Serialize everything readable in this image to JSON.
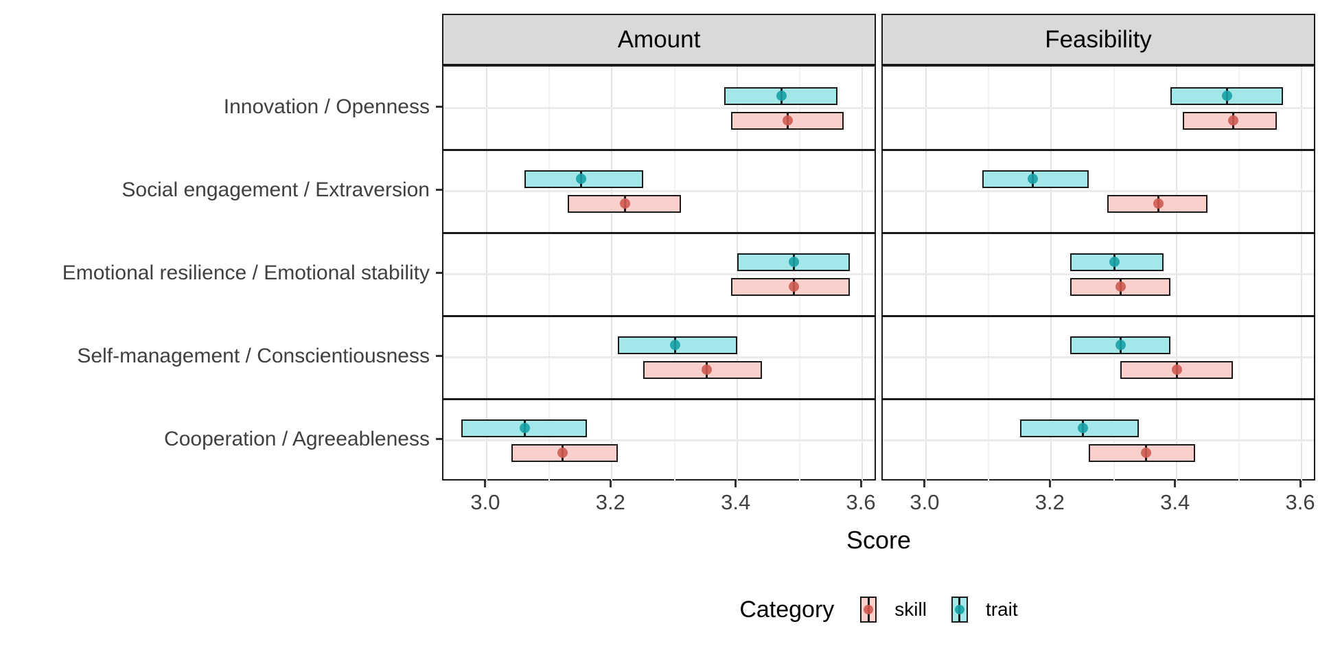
{
  "colors": {
    "skill_fill": "#FBCFCB",
    "skill_point": "#CE5B51",
    "trait_fill": "#A3E7E9",
    "trait_point": "#18A2A7",
    "strip_bg": "#D9D9D9",
    "grid_major": "#E3E3E3",
    "grid_minor": "#F1F1F1",
    "category_grid": "#EBEBEB",
    "panel_border": "#1A1A1A",
    "axis_text": "#404040"
  },
  "chart_data": {
    "type": "bar",
    "subtype": "crossbar_range_with_midpoint",
    "title": "",
    "xlabel": "Score",
    "grid": "on",
    "legend_position": "bottom",
    "axis": {
      "min": 2.931,
      "max": 3.624,
      "major_ticks": [
        3.0,
        3.2,
        3.4,
        3.6
      ],
      "minor_ticks": [
        3.1,
        3.3,
        3.5
      ],
      "tick_labels": [
        "3.0",
        "3.2",
        "3.4",
        "3.6"
      ]
    },
    "categories": [
      "Innovation / Openness",
      "Social engagement / Extraversion",
      "Emotional resilience / Emotional stability",
      "Self-management / Conscientiousness",
      "Cooperation / Agreeableness"
    ],
    "legend": {
      "title": "Category",
      "entries": [
        {
          "group": "skill",
          "label": "skill"
        },
        {
          "group": "trait",
          "label": "trait"
        }
      ]
    },
    "facets": [
      {
        "label": "Amount",
        "rows": [
          {
            "category": "Innovation / Openness",
            "bars": [
              {
                "group": "trait",
                "lo": 3.38,
                "mid": 3.47,
                "hi": 3.56
              },
              {
                "group": "skill",
                "lo": 3.39,
                "mid": 3.48,
                "hi": 3.57
              }
            ]
          },
          {
            "category": "Social engagement / Extraversion",
            "bars": [
              {
                "group": "trait",
                "lo": 3.06,
                "mid": 3.15,
                "hi": 3.25
              },
              {
                "group": "skill",
                "lo": 3.13,
                "mid": 3.22,
                "hi": 3.31
              }
            ]
          },
          {
            "category": "Emotional resilience / Emotional stability",
            "bars": [
              {
                "group": "trait",
                "lo": 3.4,
                "mid": 3.49,
                "hi": 3.58
              },
              {
                "group": "skill",
                "lo": 3.39,
                "mid": 3.49,
                "hi": 3.58
              }
            ]
          },
          {
            "category": "Self-management / Conscientiousness",
            "bars": [
              {
                "group": "trait",
                "lo": 3.21,
                "mid": 3.3,
                "hi": 3.4
              },
              {
                "group": "skill",
                "lo": 3.25,
                "mid": 3.35,
                "hi": 3.44
              }
            ]
          },
          {
            "category": "Cooperation / Agreeableness",
            "bars": [
              {
                "group": "trait",
                "lo": 2.96,
                "mid": 3.06,
                "hi": 3.16
              },
              {
                "group": "skill",
                "lo": 3.04,
                "mid": 3.12,
                "hi": 3.21
              }
            ]
          }
        ]
      },
      {
        "label": "Feasibility",
        "rows": [
          {
            "category": "Innovation / Openness",
            "bars": [
              {
                "group": "trait",
                "lo": 3.39,
                "mid": 3.48,
                "hi": 3.57
              },
              {
                "group": "skill",
                "lo": 3.41,
                "mid": 3.49,
                "hi": 3.56
              }
            ]
          },
          {
            "category": "Social engagement / Extraversion",
            "bars": [
              {
                "group": "trait",
                "lo": 3.09,
                "mid": 3.17,
                "hi": 3.26
              },
              {
                "group": "skill",
                "lo": 3.29,
                "mid": 3.37,
                "hi": 3.45
              }
            ]
          },
          {
            "category": "Emotional resilience / Emotional stability",
            "bars": [
              {
                "group": "trait",
                "lo": 3.23,
                "mid": 3.3,
                "hi": 3.38
              },
              {
                "group": "skill",
                "lo": 3.23,
                "mid": 3.31,
                "hi": 3.39
              }
            ]
          },
          {
            "category": "Self-management / Conscientiousness",
            "bars": [
              {
                "group": "trait",
                "lo": 3.23,
                "mid": 3.31,
                "hi": 3.39
              },
              {
                "group": "skill",
                "lo": 3.31,
                "mid": 3.4,
                "hi": 3.49
              }
            ]
          },
          {
            "category": "Cooperation / Agreeableness",
            "bars": [
              {
                "group": "trait",
                "lo": 3.15,
                "mid": 3.25,
                "hi": 3.34
              },
              {
                "group": "skill",
                "lo": 3.26,
                "mid": 3.35,
                "hi": 3.43
              }
            ]
          }
        ]
      }
    ]
  }
}
